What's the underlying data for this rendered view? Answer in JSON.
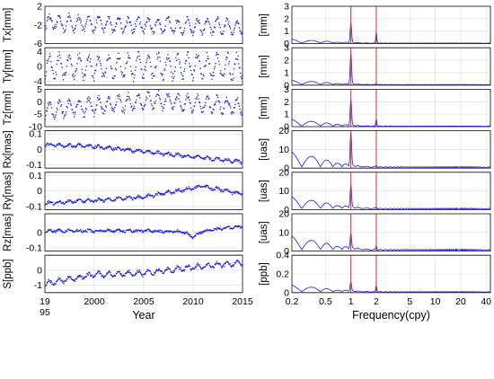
{
  "chart_data": [
    {
      "panel": "time-series",
      "type": "scatter",
      "xlabel": "Year",
      "x_range": [
        1995,
        2015
      ],
      "x_ticks": [
        "1995",
        "2000",
        "2005",
        "2010",
        "2015"
      ],
      "grid": true,
      "color": "#1f1fe0",
      "rows": [
        {
          "ylabel": "Tx[mm]",
          "ylim": [
            -6,
            2
          ],
          "yticks": [
            "2",
            "-2",
            "-6"
          ],
          "trend": [
            [
              1995,
              -1.5
            ],
            [
              2015,
              -2.5
            ]
          ],
          "amplitude": 1.5,
          "period_years": 1
        },
        {
          "ylabel": "Ty[mm]",
          "ylim": [
            -5,
            5
          ],
          "yticks": [
            "4",
            "0",
            "-4"
          ],
          "trend": [
            [
              1995,
              0
            ],
            [
              2015,
              0
            ]
          ],
          "amplitude": 3,
          "period_years": 1
        },
        {
          "ylabel": "Tz[mm]",
          "ylim": [
            -10,
            5
          ],
          "yticks": [
            "5",
            "0",
            "-5",
            "-10"
          ],
          "trend": [
            [
              1995,
              -3.5
            ],
            [
              2006,
              0.5
            ],
            [
              2015,
              -2
            ]
          ],
          "amplitude": 3,
          "period_years": 1
        },
        {
          "ylabel": "Rx[mas]",
          "ylim": [
            -0.12,
            0.12
          ],
          "yticks": [
            "0.1",
            "0",
            "-0.1"
          ],
          "trend": [
            [
              1995,
              0.03
            ],
            [
              2000,
              0.02
            ],
            [
              2015,
              -0.08
            ]
          ],
          "amplitude": 0.008,
          "period_years": 1
        },
        {
          "ylabel": "Ry[mas]",
          "ylim": [
            -0.12,
            0.12
          ],
          "yticks": [
            "0.1",
            "0",
            "-0.1"
          ],
          "trend": [
            [
              1995,
              -0.08
            ],
            [
              2005,
              -0.04
            ],
            [
              2011,
              0.03
            ],
            [
              2015,
              -0.02
            ]
          ],
          "amplitude": 0.008,
          "period_years": 1
        },
        {
          "ylabel": "Rz[mas]",
          "ylim": [
            -0.12,
            0.12
          ],
          "yticks": [
            "0",
            "-0.1"
          ],
          "trend": [
            [
              1995,
              0.01
            ],
            [
              2005,
              0.01
            ],
            [
              2009,
              0.005
            ],
            [
              2010,
              -0.03
            ],
            [
              2011,
              0.01
            ],
            [
              2015,
              0.04
            ]
          ],
          "amplitude": 0.005,
          "period_years": 1
        },
        {
          "ylabel": "S[ppb]",
          "ylim": [
            -1.5,
            1
          ],
          "yticks": [
            "0",
            "-1"
          ],
          "trend": [
            [
              1995,
              -0.9
            ],
            [
              2000,
              -0.3
            ],
            [
              2005,
              -0.2
            ],
            [
              2010,
              0.2
            ],
            [
              2015,
              0.5
            ]
          ],
          "amplitude": 0.15,
          "period_years": 1
        }
      ]
    },
    {
      "panel": "spectrum",
      "type": "line",
      "xlabel": "Frequency(cpy)",
      "x_scale": "log",
      "x_range": [
        0.2,
        45
      ],
      "x_ticks": [
        "0.2",
        "0.5",
        "1",
        "2",
        "5",
        "10",
        "20",
        "40"
      ],
      "marker_frequencies": [
        1,
        2
      ],
      "marker_color": "#e03030",
      "grid": true,
      "color": "#1f1fe0",
      "rows": [
        {
          "ylabel": "[mm]",
          "ylim": [
            0,
            3
          ],
          "yticks": [
            "3",
            "2",
            "1",
            "0"
          ],
          "peaks": [
            1.6,
            0.9
          ],
          "low_freq": 0.35,
          "floor": 0.05
        },
        {
          "ylabel": "[mm]",
          "ylim": [
            0,
            3
          ],
          "yticks": [
            "3",
            "2",
            "1",
            "0"
          ],
          "peaks": [
            2.5,
            0.1
          ],
          "low_freq": 0.4,
          "floor": 0.05
        },
        {
          "ylabel": "[mm]",
          "ylim": [
            0,
            3
          ],
          "yticks": [
            "3",
            "2",
            "1",
            "0"
          ],
          "peaks": [
            2.1,
            0.6
          ],
          "low_freq": 0.6,
          "floor": 0.05
        },
        {
          "ylabel": "[uas]",
          "ylim": [
            0,
            20
          ],
          "yticks": [
            "20",
            "10",
            "0"
          ],
          "peaks": [
            18,
            1
          ],
          "low_freq": 9,
          "floor": 0.7
        },
        {
          "ylabel": "[uas]",
          "ylim": [
            0,
            20
          ],
          "yticks": [
            "20",
            "10",
            "0"
          ],
          "peaks": [
            12,
            1
          ],
          "low_freq": 7,
          "floor": 0.7
        },
        {
          "ylabel": "[uas]",
          "ylim": [
            0,
            20
          ],
          "yticks": [
            "20",
            "10",
            "0"
          ],
          "peaks": [
            8,
            2
          ],
          "low_freq": 8,
          "floor": 0.9
        },
        {
          "ylabel": "[ppb]",
          "ylim": [
            0,
            0.4
          ],
          "yticks": [
            "0.4",
            "0.2",
            "0"
          ],
          "peaks": [
            0.1,
            0.07
          ],
          "low_freq": 0.08,
          "floor": 0.01
        }
      ]
    }
  ]
}
